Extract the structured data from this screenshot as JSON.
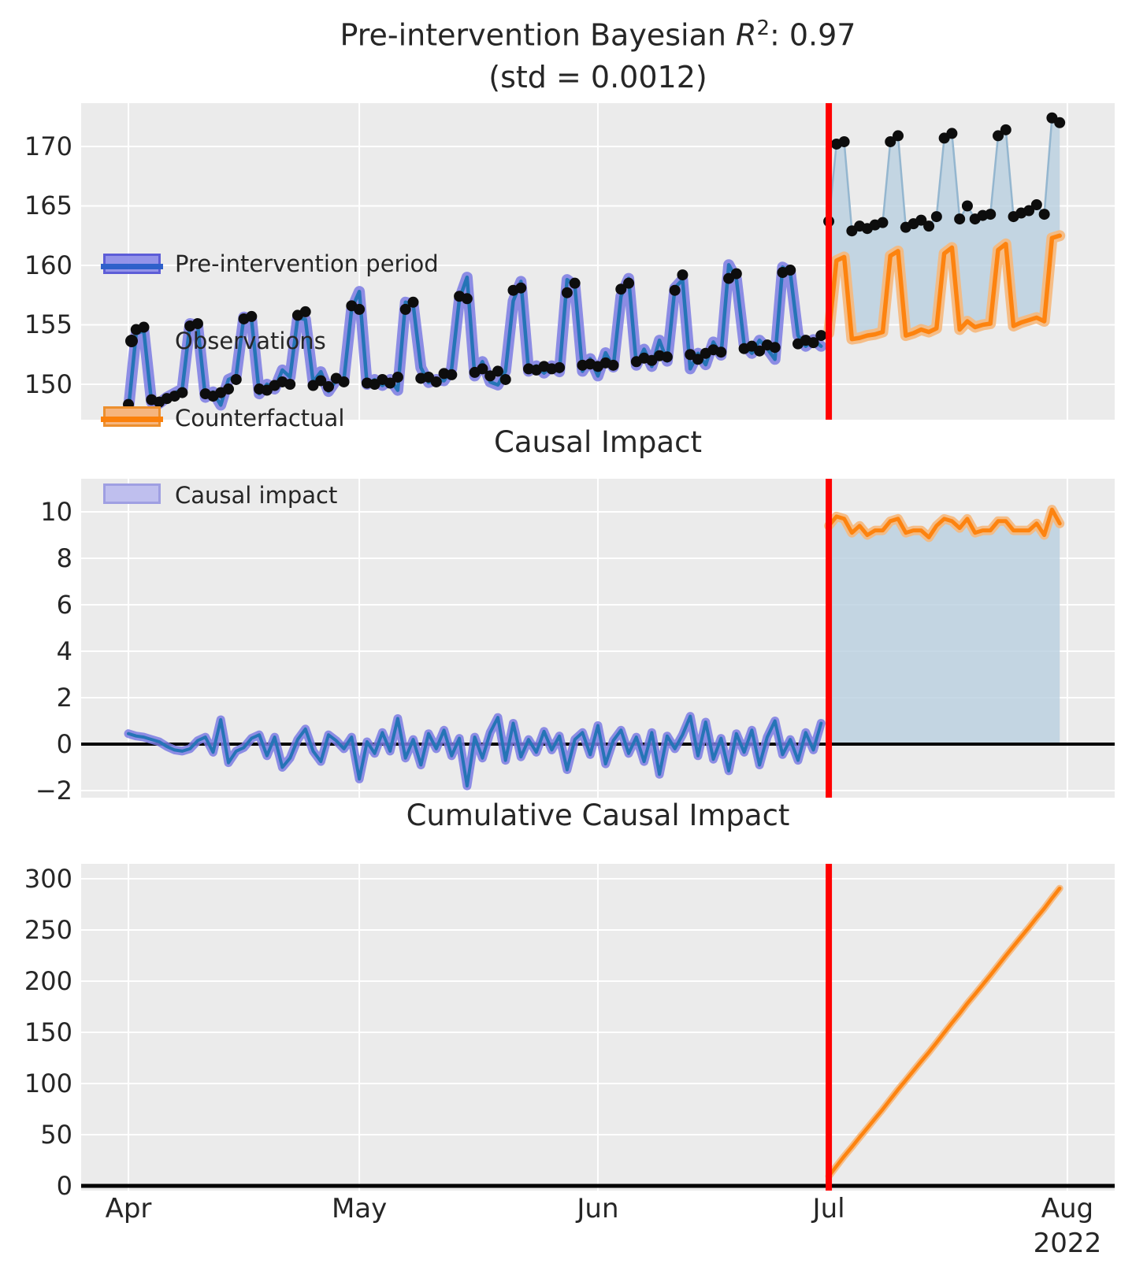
{
  "figure": {
    "title": {
      "prefix": "Pre-intervention Bayesian ",
      "r_symbol": "R",
      "r_exponent": "2",
      "suffix": ": 0.97"
    },
    "subtitle": "(std = 0.0012)"
  },
  "panels": [
    {
      "name": "pre-intervention-fit",
      "title": "",
      "yticks": [
        "170",
        "165",
        "160",
        "155",
        "150"
      ]
    },
    {
      "name": "causal-impact",
      "title": "Causal Impact",
      "yticks": [
        "10",
        "8",
        "6",
        "4",
        "2",
        "0",
        "−2"
      ]
    },
    {
      "name": "cumulative-causal-impact",
      "title": "Cumulative Causal Impact",
      "yticks": [
        "300",
        "250",
        "200",
        "150",
        "100",
        "50",
        "0"
      ]
    }
  ],
  "xaxis": {
    "labels": [
      "Apr",
      "May",
      "Jun",
      "Jul",
      "Aug"
    ],
    "year": "2022"
  },
  "legend": {
    "items": [
      {
        "label": "Pre-intervention period",
        "swatch": "band",
        "fill": "#8f8fe9",
        "border": "#5656d6",
        "line": "#2459c9"
      },
      {
        "label": "Observations",
        "swatch": "dot",
        "fill": "#0d0d0d"
      },
      {
        "label": "Counterfactual",
        "swatch": "band",
        "fill": "#f6b57e",
        "border": "#ec8f2e",
        "line": "#fb810c"
      },
      {
        "label": "Causal impact",
        "swatch": "patch",
        "fill": "#bfbfee",
        "border": "#9f9fe2"
      }
    ]
  },
  "colors": {
    "panel_bg": "#ebebeb",
    "grid": "#ffffff",
    "text": "#262626",
    "blue_line": "#2574b6",
    "blue_band": "#7b7be3",
    "orange_line": "#fd830f",
    "orange_band": "#f6b87c",
    "impact_fill": "#b9cfe0",
    "post_obs_line": "#94b6cf",
    "observations": "#0d0d0d",
    "red_line": "#ff0000",
    "zero_line": "#000000"
  },
  "chart_data": {
    "type": "line",
    "x_unit": "days (daily data)",
    "start_date": "2022-04-01",
    "intervention_date": "2022-07-01",
    "x_tick_labels": [
      "Apr",
      "May",
      "Jun",
      "Jul",
      "Aug 2022"
    ],
    "n_pre_days": 91,
    "n_post_days": 31,
    "weekly_seasonality": "weekday low, Sat-Sun high",
    "series": {
      "pre_observations": [
        148.3,
        154.6,
        154.8,
        148.7,
        148.5,
        148.8,
        149.0,
        149.3,
        154.9,
        155.1,
        149.2,
        149.0,
        149.3,
        149.6,
        150.4,
        155.5,
        155.7,
        149.6,
        149.5,
        149.9,
        150.2,
        150.0,
        155.8,
        156.1,
        149.9,
        150.3,
        149.8,
        150.5,
        150.2,
        156.6,
        156.3,
        150.1,
        150.0,
        150.4,
        150.1,
        150.6,
        156.3,
        156.9,
        150.5,
        150.6,
        150.2,
        150.9,
        150.8,
        157.4,
        157.2,
        151.0,
        151.3,
        150.7,
        151.1,
        150.4,
        157.9,
        158.1,
        151.3,
        151.2,
        151.5,
        151.3,
        151.4,
        157.7,
        158.5,
        151.6,
        151.7,
        151.5,
        151.8,
        151.6,
        158.0,
        158.5,
        151.9,
        152.2,
        152.0,
        152.4,
        152.3,
        157.9,
        159.2,
        152.5,
        152.1,
        152.6,
        152.9,
        152.7,
        158.9,
        159.3,
        153.0,
        153.2,
        152.8,
        153.3,
        153.1,
        159.4,
        159.6,
        153.4,
        153.7,
        153.5,
        154.1
      ],
      "pre_causal_impact": [
        0.45,
        0.35,
        0.3,
        0.2,
        0.1,
        -0.1,
        -0.25,
        -0.3,
        -0.2,
        0.15,
        0.3,
        -0.35,
        1.05,
        -0.8,
        -0.3,
        -0.15,
        0.25,
        0.4,
        -0.5,
        0.3,
        -1.0,
        -0.6,
        0.2,
        0.65,
        -0.3,
        -0.75,
        0.4,
        0.15,
        -0.2,
        0.3,
        -1.5,
        0.1,
        -0.4,
        0.5,
        -0.3,
        1.1,
        -0.6,
        0.2,
        -0.9,
        0.45,
        -0.2,
        0.6,
        -0.5,
        0.25,
        -1.8,
        0.3,
        -0.6,
        0.5,
        1.15,
        -0.7,
        0.9,
        -0.55,
        0.2,
        -0.35,
        0.55,
        -0.25,
        0.35,
        -1.1,
        0.2,
        0.5,
        -0.45,
        0.8,
        -0.85,
        0.15,
        0.6,
        -0.4,
        0.3,
        -0.75,
        0.5,
        -1.3,
        0.35,
        -0.2,
        0.4,
        1.2,
        -0.5,
        0.95,
        -0.65,
        0.25,
        -1.15,
        0.45,
        -0.35,
        0.6,
        -0.9,
        0.3,
        1.0,
        -0.45,
        0.2,
        -0.7,
        0.5,
        -0.25,
        0.9
      ],
      "post_observations": [
        163.7,
        170.2,
        170.4,
        162.9,
        163.3,
        163.1,
        163.4,
        163.6,
        170.4,
        170.9,
        163.2,
        163.5,
        163.8,
        163.3,
        164.1,
        170.7,
        171.1,
        163.9,
        165.0,
        163.9,
        164.2,
        164.3,
        170.9,
        171.4,
        164.1,
        164.4,
        164.6,
        165.1,
        164.3,
        172.4,
        172.0
      ],
      "post_counterfactual": [
        154.3,
        160.4,
        160.7,
        153.8,
        153.9,
        154.1,
        154.2,
        154.4,
        160.8,
        161.2,
        154.1,
        154.3,
        154.6,
        154.4,
        154.7,
        161.0,
        161.5,
        154.6,
        155.3,
        154.8,
        155.0,
        155.1,
        161.3,
        161.8,
        154.9,
        155.2,
        155.4,
        155.6,
        155.3,
        162.3,
        162.5
      ]
    },
    "derived": {
      "model_fit": "pre_observations minus pre_causal_impact",
      "post_causal_impact": "post_observations minus post_counterfactual (≈ 9 to 10)",
      "cumulative_causal_impact": "cumsum of post_causal_impact, ≈ 0 before Jul, ≈ 290 by Aug"
    },
    "panels_meta": [
      {
        "title": "Pre-intervention Bayesian R2: 0.97 (std = 0.0012)",
        "ylim": [
          147.0,
          173.7
        ],
        "ytick_values": [
          150,
          155,
          160,
          165,
          170
        ]
      },
      {
        "title": "Causal Impact",
        "ylim": [
          -2.3,
          11.4
        ],
        "ytick_values": [
          -2,
          0,
          2,
          4,
          6,
          8,
          10
        ],
        "zero_line": true
      },
      {
        "title": "Cumulative Causal Impact",
        "ylim": [
          -5,
          314
        ],
        "ytick_values": [
          0,
          50,
          100,
          150,
          200,
          250,
          300
        ],
        "zero_line": true
      }
    ],
    "grid": true,
    "legend_position": "upper left of first panel",
    "intervention_marker": "vertical red line at Jul 1 2022 in all panels"
  }
}
